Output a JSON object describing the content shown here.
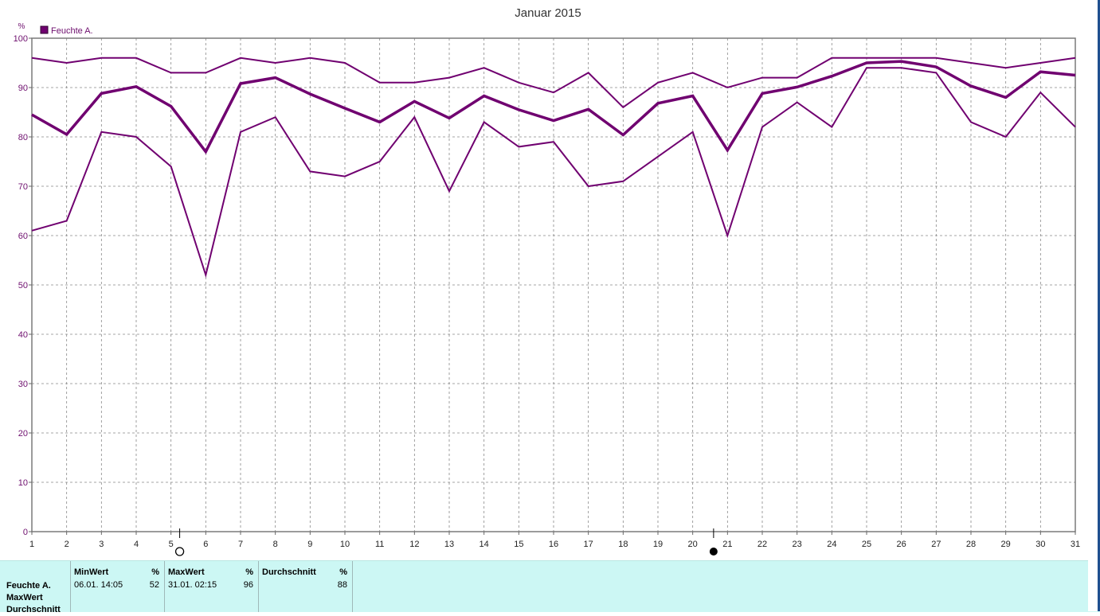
{
  "chart_data": {
    "type": "line",
    "title": "Januar 2015",
    "ylabel": "%",
    "xlabel": "",
    "ylim": [
      0,
      100
    ],
    "yticks": [
      0,
      10,
      20,
      30,
      40,
      50,
      60,
      70,
      80,
      90,
      100
    ],
    "x": [
      1,
      2,
      3,
      4,
      5,
      6,
      7,
      8,
      9,
      10,
      11,
      12,
      13,
      14,
      15,
      16,
      17,
      18,
      19,
      20,
      21,
      22,
      23,
      24,
      25,
      26,
      27,
      28,
      29,
      30,
      31
    ],
    "grid": true,
    "legend": {
      "position": "top-left",
      "entries": [
        "Feuchte A."
      ]
    },
    "series": [
      {
        "name": "Feuchte A.",
        "role": "max",
        "values": [
          96,
          95,
          96,
          96,
          93,
          93,
          96,
          95,
          96,
          95,
          91,
          91,
          92,
          94,
          91,
          89,
          93,
          86,
          91,
          93,
          90,
          92,
          92,
          96,
          96,
          96,
          96,
          95,
          94,
          95,
          96
        ]
      },
      {
        "role": "avg",
        "values": [
          84.5,
          80.5,
          88.8,
          90.2,
          86.2,
          77,
          90.8,
          92,
          88.7,
          85.8,
          83,
          87.2,
          83.8,
          88.3,
          85.5,
          83.3,
          85.6,
          80.4,
          86.8,
          88.3,
          77.3,
          88.8,
          90.1,
          92.3,
          95,
          95.3,
          94.2,
          90.3,
          88,
          93.2,
          92.5
        ]
      },
      {
        "role": "min",
        "values": [
          61,
          63,
          81,
          80,
          74,
          52,
          81,
          84,
          73,
          72,
          75,
          84,
          69,
          83,
          78,
          79,
          70,
          71,
          76,
          81,
          60,
          82,
          87,
          82,
          94,
          94,
          93,
          83,
          80,
          89,
          82
        ]
      }
    ],
    "markers": [
      {
        "x": 5.25,
        "symbol": "full-moon"
      },
      {
        "x": 20.6,
        "symbol": "new-moon"
      }
    ],
    "colors": {
      "line": "#700070",
      "axis": "#666666",
      "grid": "#888888",
      "label": "#6e0f6e",
      "panel": "#ccf7f4"
    }
  },
  "summary": {
    "row_labels": [
      "Feuchte A.",
      "MaxWert",
      "Durchschnitt"
    ],
    "columns": [
      {
        "header": "MinWert",
        "unit": "%",
        "date": "06.01.  14:05",
        "value": "52"
      },
      {
        "header": "MaxWert",
        "unit": "%",
        "date": "31.01.  02:15",
        "value": "96"
      },
      {
        "header": "Durchschnitt",
        "unit": "%",
        "date": "",
        "value": "88"
      }
    ]
  }
}
